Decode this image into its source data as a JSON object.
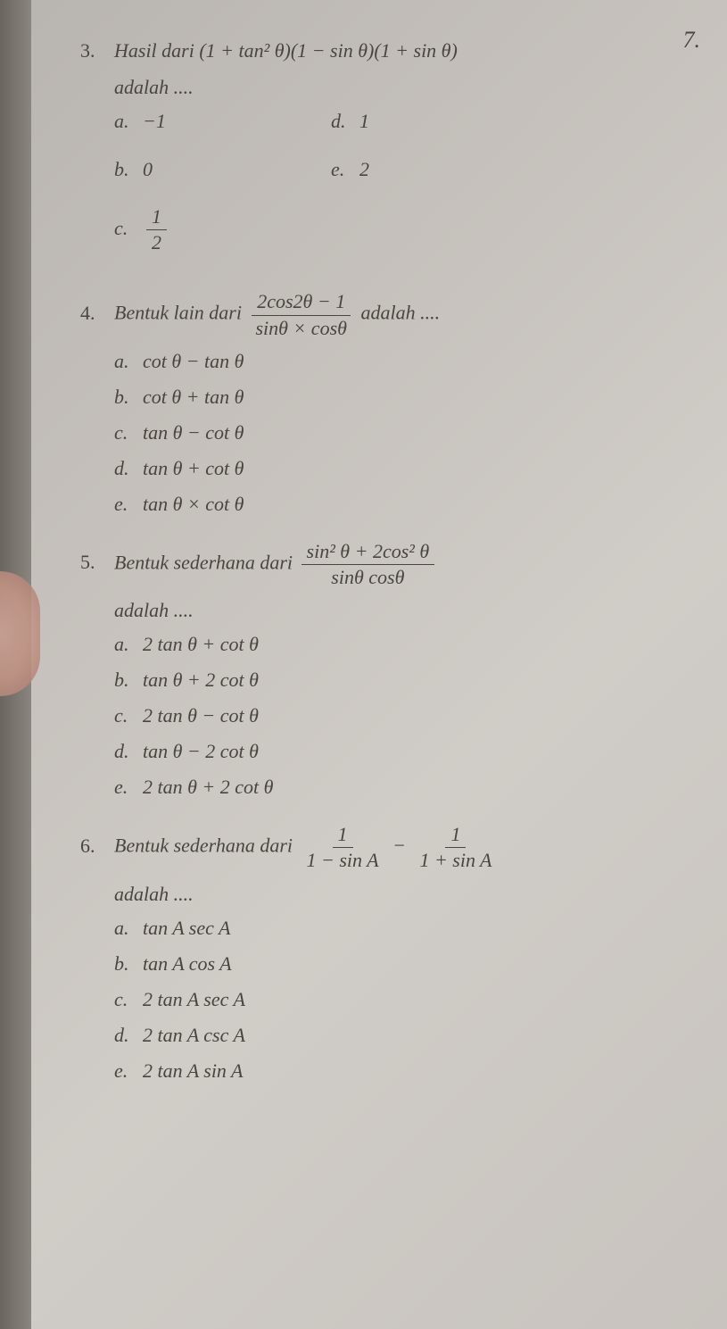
{
  "page_number_right": "7.",
  "questions": [
    {
      "number": "3.",
      "text": "Hasil dari (1 + tan² θ)(1 − sin θ)(1 + sin θ)",
      "text_cont": "adalah ....",
      "options_left": [
        {
          "letter": "a.",
          "text": "−1"
        },
        {
          "letter": "b.",
          "text": "0"
        },
        {
          "letter": "c.",
          "frac_num": "1",
          "frac_den": "2"
        }
      ],
      "options_right": [
        {
          "letter": "d.",
          "text": "1"
        },
        {
          "letter": "e.",
          "text": "2"
        }
      ]
    },
    {
      "number": "4.",
      "text_pre": "Bentuk lain dari",
      "frac_num": "2cos2θ − 1",
      "frac_den": "sinθ × cosθ",
      "text_post": "adalah ....",
      "options": [
        {
          "letter": "a.",
          "text": "cot θ − tan θ"
        },
        {
          "letter": "b.",
          "text": "cot θ + tan θ"
        },
        {
          "letter": "c.",
          "text": "tan θ − cot θ"
        },
        {
          "letter": "d.",
          "text": "tan θ + cot θ"
        },
        {
          "letter": "e.",
          "text": "tan θ × cot θ"
        }
      ]
    },
    {
      "number": "5.",
      "text_pre": "Bentuk sederhana dari",
      "frac_num": "sin² θ + 2cos² θ",
      "frac_den": "sinθ cosθ",
      "text_cont": "adalah ....",
      "options": [
        {
          "letter": "a.",
          "text": "2 tan θ + cot θ"
        },
        {
          "letter": "b.",
          "text": "tan θ + 2 cot θ"
        },
        {
          "letter": "c.",
          "text": "2 tan θ − cot θ"
        },
        {
          "letter": "d.",
          "text": "tan θ − 2 cot θ"
        },
        {
          "letter": "e.",
          "text": "2 tan θ + 2 cot θ"
        }
      ]
    },
    {
      "number": "6.",
      "text_pre": "Bentuk sederhana dari",
      "frac1_num": "1",
      "frac1_den": "1 − sin A",
      "minus": "−",
      "frac2_num": "1",
      "frac2_den": "1 + sin A",
      "text_cont": "adalah ....",
      "options": [
        {
          "letter": "a.",
          "text": "tan A sec A"
        },
        {
          "letter": "b.",
          "text": "tan A cos A"
        },
        {
          "letter": "c.",
          "text": "2 tan A sec A"
        },
        {
          "letter": "d.",
          "text": "2 tan A csc A"
        },
        {
          "letter": "e.",
          "text": "2 tan A sin A"
        }
      ]
    }
  ]
}
